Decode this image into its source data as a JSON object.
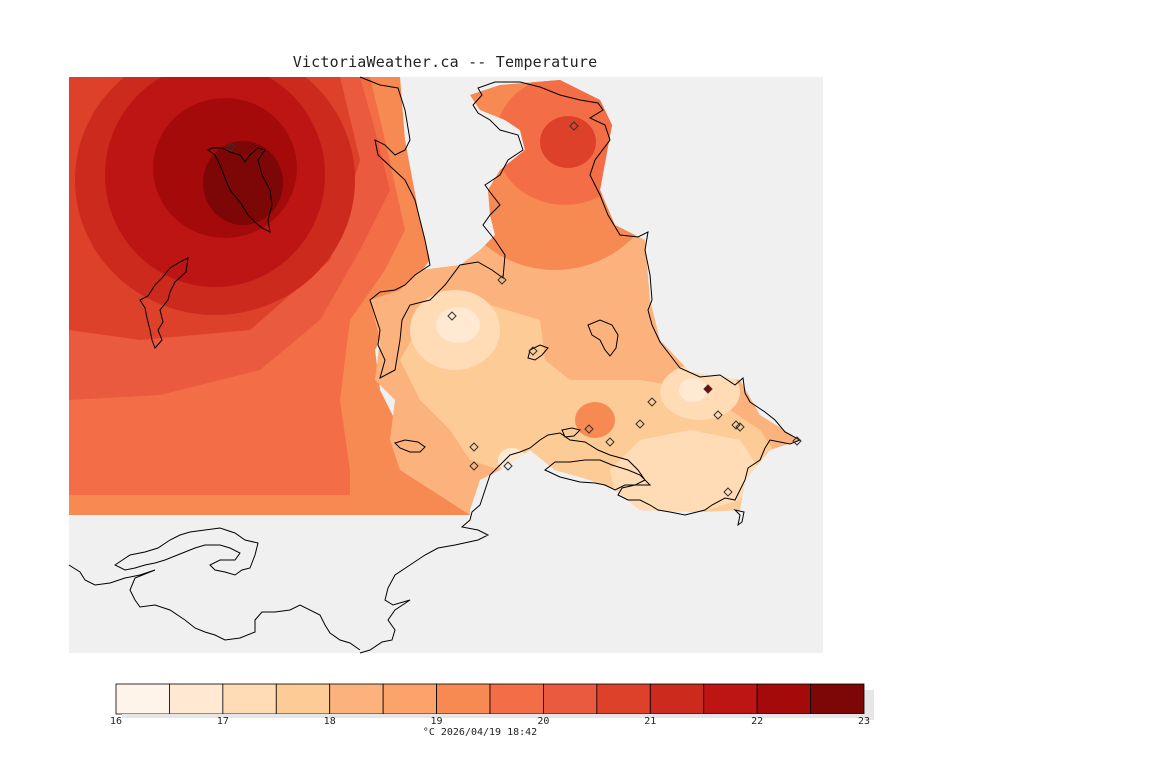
{
  "title": "VictoriaWeather.ca -- Temperature",
  "colorbar": {
    "min": 16,
    "max": 23,
    "step": 0.5,
    "tick_labels": [
      "16",
      "17",
      "18",
      "19",
      "20",
      "21",
      "22",
      "23"
    ],
    "colors": [
      "#fff4e9",
      "#ffe9d3",
      "#ffdcb5",
      "#fdcb96",
      "#fcb27c",
      "#fba36a",
      "#f78a53",
      "#f36e47",
      "#e95a3f",
      "#dd4129",
      "#cc2a1d",
      "#bd1514",
      "#a40a0a",
      "#7d0606"
    ],
    "unit": "°C",
    "timestamp": "2026/04/19 18:42"
  },
  "footer_text": "°C  2026/04/19 18:42",
  "map_data": {
    "field_color_below": "#f0f0f0",
    "hotspot_level_approx": 23,
    "coldspot_level_approx": 16.5,
    "station_count": 17
  }
}
